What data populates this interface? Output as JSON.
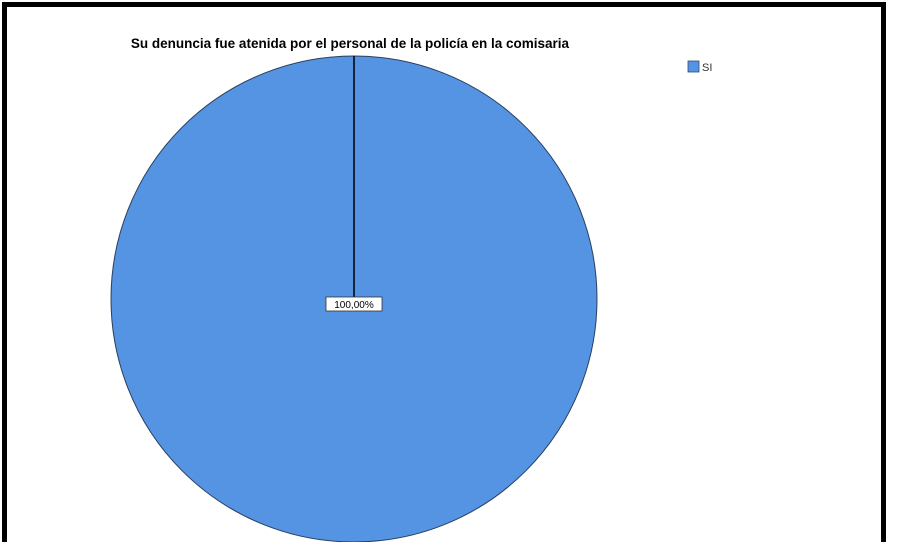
{
  "chart_data": {
    "type": "pie",
    "title": "Su denuncia fue atenida por el personal de la policía en la comisaria",
    "categories": [
      "SI"
    ],
    "values": [
      100.0
    ],
    "data_labels": [
      "100,00%"
    ],
    "colors": [
      "#5593E3"
    ],
    "legend": {
      "position": "top-right",
      "entries": [
        "SI"
      ]
    }
  }
}
